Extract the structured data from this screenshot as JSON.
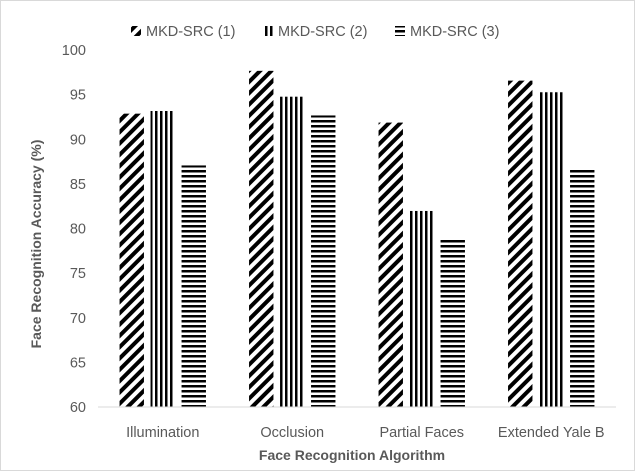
{
  "chart_data": {
    "type": "bar",
    "title": "",
    "xlabel": "Face Recognition Algorithm",
    "ylabel": "Face Recognition Accuracy (%)",
    "categories": [
      "Illumination",
      "Occlusion",
      "Partial Faces",
      "Extended Yale B"
    ],
    "series": [
      {
        "name": "MKD-SRC (1)",
        "values": [
          92.9,
          97.7,
          91.9,
          96.6
        ],
        "pattern": "diagonal"
      },
      {
        "name": "MKD-SRC (2)",
        "values": [
          93.2,
          94.8,
          82.0,
          95.3
        ],
        "pattern": "vertical"
      },
      {
        "name": "MKD-SRC (3)",
        "values": [
          87.1,
          92.7,
          78.9,
          86.8
        ],
        "pattern": "horizontal"
      }
    ],
    "ylim": [
      60,
      100
    ],
    "yticks": [
      60,
      65,
      70,
      75,
      80,
      85,
      90,
      95,
      100
    ],
    "grid": false,
    "legend_position": "top",
    "colors": {
      "bar": "#000000",
      "axis": "#d9d9d9",
      "text": "#595959"
    }
  }
}
